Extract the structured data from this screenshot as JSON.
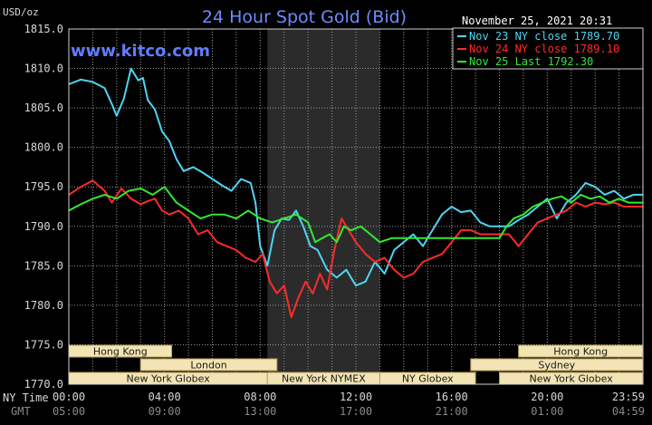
{
  "chart_data": {
    "type": "line",
    "title": "24 Hour Spot Gold (Bid)",
    "unit_label": "USD/oz",
    "source": "www.kitco.com",
    "timestamp": "November 25, 2021 20:31",
    "ylim": [
      1770,
      1815
    ],
    "y_ticks": [
      "1815.0",
      "1810.0",
      "1805.0",
      "1800.0",
      "1795.0",
      "1790.0",
      "1785.0",
      "1780.0",
      "1775.0",
      "1770.0"
    ],
    "x_axis_label": "NY Time",
    "x_ticks": [
      "00:00",
      "04:00",
      "08:00",
      "12:00",
      "16:00",
      "20:00",
      "23:59"
    ],
    "gmt_label": "GMT",
    "gmt_ticks": [
      "05:00",
      "09:00",
      "13:00",
      "17:00",
      "21:00",
      "01:00",
      "04:59"
    ],
    "grid": true,
    "legend_position": "top-right",
    "highlight_band": [
      8.3,
      13.0
    ],
    "sessions": [
      {
        "label": "Hong Kong",
        "row": 0,
        "start": 0.0,
        "end": 4.3
      },
      {
        "label": "London",
        "row": 1,
        "start": 3.0,
        "end": 8.7
      },
      {
        "label": "New York Globex",
        "row": 2,
        "start": 0.0,
        "end": 8.3
      },
      {
        "label": "New York NYMEX",
        "row": 2,
        "start": 8.3,
        "end": 13.0
      },
      {
        "label": "NY Globex",
        "row": 2,
        "start": 13.0,
        "end": 17.0
      },
      {
        "label": "Hong Kong",
        "row": 0,
        "start": 18.8,
        "end": 23.99
      },
      {
        "label": "Sydney",
        "row": 1,
        "start": 16.8,
        "end": 23.99
      },
      {
        "label": "New York Globex",
        "row": 2,
        "start": 18.0,
        "end": 23.99
      }
    ],
    "series": [
      {
        "name": "Nov 23 NY close 1789.70",
        "color": "#4fd4f2",
        "x": [
          0.0,
          0.5,
          1.0,
          1.5,
          1.8,
          2.0,
          2.3,
          2.6,
          2.9,
          3.1,
          3.3,
          3.6,
          3.9,
          4.2,
          4.5,
          4.8,
          5.2,
          5.6,
          6.0,
          6.4,
          6.8,
          7.2,
          7.6,
          7.8,
          8.0,
          8.3,
          8.6,
          8.9,
          9.2,
          9.5,
          9.8,
          10.1,
          10.4,
          10.8,
          11.2,
          11.6,
          12.0,
          12.4,
          12.8,
          13.2,
          13.6,
          14.0,
          14.4,
          14.8,
          15.2,
          15.6,
          16.0,
          16.4,
          16.8,
          17.2,
          17.6,
          18.0,
          18.4,
          18.8,
          19.2,
          19.6,
          20.0,
          20.4,
          20.8,
          21.2,
          21.6,
          22.0,
          22.4,
          22.8,
          23.2,
          23.6,
          23.99
        ],
        "y": [
          1808.0,
          1808.6,
          1808.3,
          1807.5,
          1805.5,
          1804.0,
          1806.2,
          1810.0,
          1808.5,
          1808.8,
          1806.0,
          1804.8,
          1802.0,
          1800.8,
          1798.5,
          1797.0,
          1797.5,
          1796.8,
          1796.0,
          1795.2,
          1794.5,
          1796.0,
          1795.5,
          1793.0,
          1787.5,
          1785.0,
          1789.5,
          1791.0,
          1790.8,
          1792.0,
          1790.0,
          1787.5,
          1787.0,
          1784.5,
          1783.5,
          1784.5,
          1782.5,
          1783.0,
          1785.5,
          1784.0,
          1787.0,
          1788.0,
          1789.0,
          1787.5,
          1789.5,
          1791.5,
          1792.5,
          1791.8,
          1792.0,
          1790.5,
          1790.0,
          1790.0,
          1790.0,
          1790.8,
          1791.5,
          1792.5,
          1793.5,
          1791.0,
          1793.0,
          1794.0,
          1795.5,
          1795.0,
          1794.0,
          1794.5,
          1793.5,
          1794.0,
          1794.0
        ]
      },
      {
        "name": "Nov 24 NY close 1789.10",
        "color": "#ff2a2a",
        "x": [
          0.0,
          0.5,
          1.0,
          1.5,
          1.8,
          2.2,
          2.6,
          3.0,
          3.3,
          3.6,
          3.9,
          4.2,
          4.6,
          5.0,
          5.4,
          5.8,
          6.2,
          6.6,
          7.0,
          7.4,
          7.8,
          8.1,
          8.4,
          8.7,
          9.0,
          9.3,
          9.6,
          9.9,
          10.2,
          10.5,
          10.8,
          11.1,
          11.4,
          11.7,
          12.0,
          12.4,
          12.8,
          13.2,
          13.6,
          14.0,
          14.4,
          14.8,
          15.2,
          15.6,
          16.0,
          16.4,
          16.8,
          17.2,
          17.6,
          18.0,
          18.4,
          18.8,
          19.2,
          19.6,
          20.0,
          20.4,
          20.8,
          21.2,
          21.6,
          22.0,
          22.4,
          22.8,
          23.2,
          23.6,
          23.99
        ],
        "y": [
          1794.0,
          1795.0,
          1795.8,
          1794.5,
          1793.0,
          1794.8,
          1793.5,
          1792.8,
          1793.2,
          1793.5,
          1792.0,
          1791.5,
          1792.0,
          1791.0,
          1789.0,
          1789.5,
          1788.0,
          1787.5,
          1787.0,
          1786.0,
          1785.5,
          1786.5,
          1783.0,
          1781.5,
          1782.5,
          1778.5,
          1781.0,
          1783.0,
          1781.5,
          1784.0,
          1782.0,
          1787.0,
          1791.0,
          1789.5,
          1788.0,
          1786.5,
          1785.5,
          1786.0,
          1784.5,
          1783.5,
          1784.0,
          1785.5,
          1786.0,
          1786.5,
          1788.0,
          1789.5,
          1789.5,
          1789.0,
          1789.0,
          1789.0,
          1789.0,
          1787.5,
          1789.0,
          1790.5,
          1791.0,
          1791.5,
          1792.0,
          1793.0,
          1792.5,
          1793.0,
          1792.8,
          1793.0,
          1792.5,
          1792.5,
          1792.5
        ]
      },
      {
        "name": "Nov 25 Last 1792.30",
        "color": "#33e833",
        "x": [
          0.0,
          0.5,
          1.0,
          1.5,
          2.0,
          2.5,
          3.0,
          3.5,
          4.0,
          4.5,
          5.0,
          5.5,
          6.0,
          6.5,
          7.0,
          7.5,
          8.0,
          8.5,
          9.0,
          9.5,
          10.0,
          10.3,
          10.6,
          10.9,
          11.2,
          11.5,
          11.8,
          12.2,
          12.6,
          13.0,
          13.5,
          14.0,
          15.0,
          16.0,
          17.0,
          18.0,
          18.3,
          18.6,
          19.0,
          19.4,
          19.8,
          20.2,
          20.6,
          21.0,
          21.4,
          21.8,
          22.2,
          22.6,
          23.0,
          23.4,
          23.99
        ],
        "y": [
          1792.0,
          1792.8,
          1793.5,
          1794.0,
          1793.5,
          1794.5,
          1794.8,
          1794.0,
          1795.0,
          1793.0,
          1792.0,
          1791.0,
          1791.5,
          1791.5,
          1791.0,
          1792.0,
          1791.0,
          1790.5,
          1791.0,
          1791.5,
          1790.5,
          1788.0,
          1788.5,
          1789.0,
          1788.0,
          1790.0,
          1789.5,
          1790.0,
          1789.0,
          1788.0,
          1788.5,
          1788.5,
          1788.5,
          1788.5,
          1788.5,
          1788.5,
          1790.0,
          1791.0,
          1791.5,
          1792.5,
          1793.0,
          1793.5,
          1793.8,
          1793.0,
          1794.0,
          1793.5,
          1793.8,
          1793.0,
          1793.5,
          1793.0,
          1793.0
        ]
      }
    ]
  }
}
